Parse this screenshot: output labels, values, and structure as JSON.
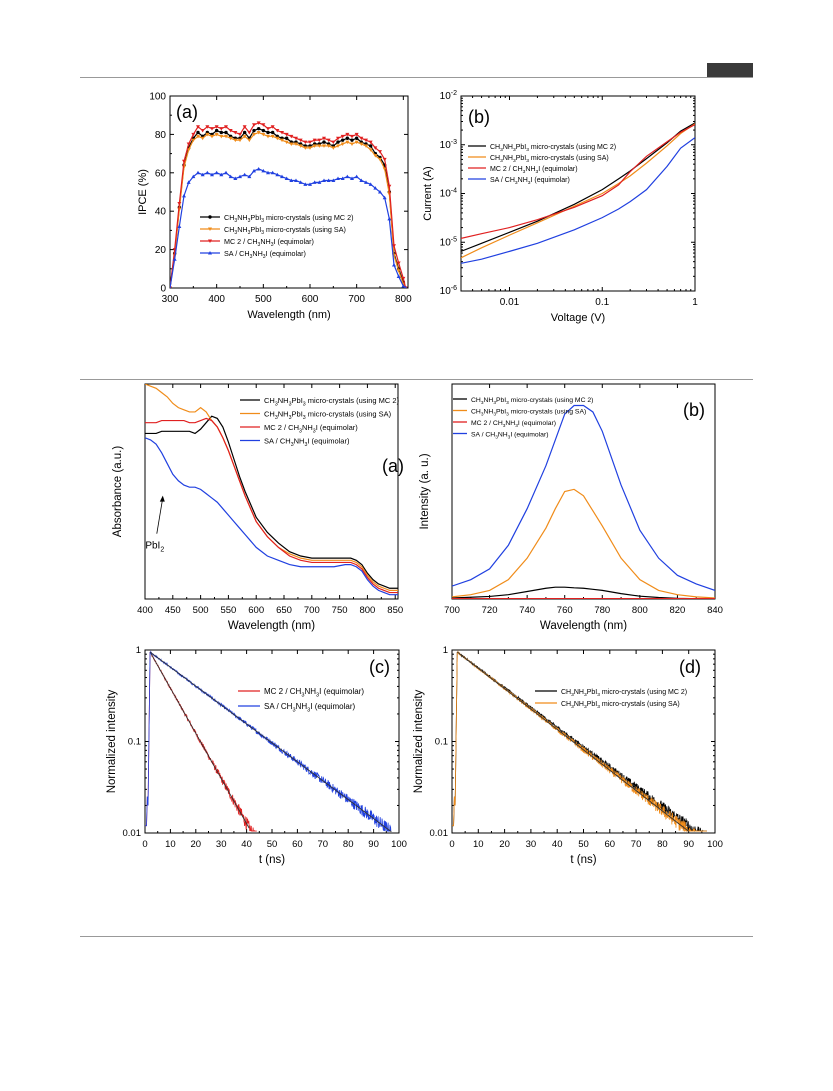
{
  "chart_data": [
    {
      "id": "fig1a",
      "type": "line",
      "panel_label": "(a)",
      "xlabel": "Wavelength (nm)",
      "ylabel": "IPCE (%)",
      "xlim": [
        300,
        810
      ],
      "ylim": [
        0,
        100
      ],
      "xticks": [
        300,
        400,
        500,
        600,
        700,
        800
      ],
      "yticks": [
        0,
        20,
        40,
        60,
        80,
        100
      ],
      "legend_position": "lower-center",
      "x": [
        300,
        310,
        320,
        330,
        340,
        350,
        360,
        370,
        380,
        390,
        400,
        410,
        420,
        430,
        440,
        450,
        460,
        470,
        480,
        490,
        500,
        510,
        520,
        530,
        540,
        550,
        560,
        570,
        580,
        590,
        600,
        610,
        620,
        630,
        640,
        650,
        660,
        670,
        680,
        690,
        700,
        710,
        720,
        730,
        740,
        750,
        760,
        770,
        780,
        790,
        800,
        805
      ],
      "series": [
        {
          "name": "CH3NH3PbI3 micro-crystals (using MC 2)",
          "color": "#000000",
          "marker": "circle",
          "values": [
            0,
            18,
            42,
            64,
            73,
            78,
            81,
            79,
            81,
            80,
            82,
            81,
            81,
            79,
            78,
            78,
            81,
            78,
            82,
            83,
            82,
            81,
            81,
            79,
            78,
            78,
            76,
            76,
            75,
            74,
            74,
            75,
            75,
            76,
            75,
            74,
            76,
            77,
            78,
            77,
            78,
            76,
            75,
            74,
            70,
            68,
            64,
            50,
            18,
            10,
            3,
            0
          ]
        },
        {
          "name": "CH3NH3PbI3 micro-crystals (using SA)",
          "color": "#f08c1a",
          "marker": "triangle-down",
          "values": [
            0,
            17,
            41,
            63,
            72,
            77,
            79,
            78,
            80,
            79,
            80,
            79,
            79,
            78,
            77,
            77,
            79,
            77,
            80,
            81,
            80,
            79,
            79,
            78,
            77,
            76,
            75,
            75,
            74,
            73,
            73,
            74,
            74,
            74,
            74,
            73,
            74,
            75,
            76,
            75,
            76,
            75,
            74,
            72,
            69,
            67,
            62,
            49,
            17,
            9,
            2,
            0
          ]
        },
        {
          "name": "MC 2 / CH3NH3I (equimolar)",
          "color": "#e02020",
          "marker": "triangle-down",
          "values": [
            0,
            20,
            44,
            66,
            75,
            80,
            84,
            82,
            84,
            83,
            84,
            83,
            84,
            82,
            81,
            80,
            84,
            81,
            85,
            86,
            85,
            83,
            84,
            82,
            81,
            80,
            79,
            78,
            77,
            76,
            76,
            77,
            77,
            78,
            77,
            76,
            78,
            79,
            80,
            79,
            80,
            78,
            77,
            76,
            73,
            71,
            67,
            53,
            22,
            13,
            5,
            0
          ]
        },
        {
          "name": "SA / CH3NH3I (equimolar)",
          "color": "#2040e0",
          "marker": "triangle-up",
          "values": [
            0,
            15,
            32,
            48,
            55,
            58,
            60,
            59,
            60,
            59,
            60,
            59,
            60,
            58,
            57,
            58,
            59,
            58,
            61,
            62,
            61,
            60,
            60,
            59,
            58,
            57,
            56,
            56,
            55,
            54,
            54,
            55,
            55,
            56,
            56,
            56,
            57,
            57,
            58,
            57,
            58,
            56,
            55,
            54,
            52,
            50,
            47,
            36,
            12,
            6,
            1,
            0
          ]
        }
      ]
    },
    {
      "id": "fig1b",
      "type": "line",
      "panel_label": "(b)",
      "xlabel": "Voltage (V)",
      "ylabel": "Current (A)",
      "xscale": "log",
      "yscale": "log",
      "xlim": [
        0.003,
        1
      ],
      "ylim": [
        1e-06,
        0.01
      ],
      "xtick_labels": [
        "0.01",
        "0.1",
        "1"
      ],
      "ytick_labels": [
        "10-6",
        "10-5",
        "10-4",
        "10-3",
        "10-2"
      ],
      "legend_position": "top-left",
      "x": [
        0.003,
        0.005,
        0.01,
        0.02,
        0.05,
        0.1,
        0.15,
        0.2,
        0.3,
        0.5,
        0.7,
        1.0
      ],
      "series": [
        {
          "name": "CH3NH3PbI3 micro-crystals (using MC 2)",
          "color": "#000000",
          "values": [
            6.5e-06,
            9.5e-06,
            1.6e-05,
            2.7e-05,
            6e-05,
            0.00012,
            0.0002,
            0.00029,
            0.00052,
            0.0011,
            0.0019,
            0.0028
          ]
        },
        {
          "name": "CH3NH3PbI3 micro-crystals (using SA)",
          "color": "#f08c1a",
          "values": [
            4.8e-06,
            7.7e-06,
            1.4e-05,
            2.5e-05,
            5.5e-05,
            0.0001,
            0.00016,
            0.00023,
            0.00042,
            0.00095,
            0.0017,
            0.0027
          ]
        },
        {
          "name": "MC 2 / CH3NH3I (equimolar)",
          "color": "#e02020",
          "values": [
            1.2e-05,
            1.5e-05,
            2e-05,
            2.9e-05,
            5.2e-05,
            9e-05,
            0.00015,
            0.00028,
            0.00058,
            0.00115,
            0.0018,
            0.0026
          ]
        },
        {
          "name": "SA / CH3NH3I (equimolar)",
          "color": "#2040e0",
          "values": [
            3.7e-06,
            4.5e-06,
            6.5e-06,
            9.5e-06,
            1.8e-05,
            3.2e-05,
            4.8e-05,
            6.8e-05,
            0.00012,
            0.00036,
            0.00085,
            0.0014
          ]
        }
      ]
    },
    {
      "id": "fig2a",
      "type": "line",
      "panel_label": "(a)",
      "xlabel": "Wavelength (nm)",
      "ylabel": "Absorbance (a.u.)",
      "annotation": "PbI2",
      "xlim": [
        400,
        855
      ],
      "ylim": [
        0,
        1
      ],
      "xticks": [
        400,
        450,
        500,
        550,
        600,
        650,
        700,
        750,
        800,
        850
      ],
      "legend_position": "top-right",
      "x": [
        400,
        410,
        420,
        430,
        440,
        450,
        460,
        470,
        480,
        490,
        500,
        510,
        520,
        530,
        540,
        550,
        560,
        570,
        580,
        590,
        600,
        620,
        640,
        660,
        680,
        700,
        720,
        740,
        760,
        770,
        780,
        790,
        800,
        810,
        820,
        830,
        840,
        850,
        855
      ],
      "series": [
        {
          "name": "CH3NH3PbI3 micro-crystals (using MC 2)",
          "color": "#000000",
          "values": [
            0.77,
            0.77,
            0.77,
            0.78,
            0.78,
            0.78,
            0.78,
            0.78,
            0.78,
            0.77,
            0.79,
            0.82,
            0.85,
            0.84,
            0.8,
            0.73,
            0.65,
            0.57,
            0.5,
            0.44,
            0.38,
            0.31,
            0.26,
            0.22,
            0.2,
            0.19,
            0.19,
            0.19,
            0.19,
            0.19,
            0.18,
            0.16,
            0.12,
            0.09,
            0.07,
            0.06,
            0.05,
            0.05,
            0.05
          ]
        },
        {
          "name": "CH3NH3PbI3 micro-crystals (using SA)",
          "color": "#f08c1a",
          "values": [
            1.0,
            0.99,
            0.98,
            0.96,
            0.94,
            0.91,
            0.89,
            0.88,
            0.87,
            0.87,
            0.89,
            0.87,
            0.83,
            0.8,
            0.75,
            0.69,
            0.62,
            0.55,
            0.48,
            0.42,
            0.36,
            0.29,
            0.24,
            0.21,
            0.19,
            0.18,
            0.18,
            0.18,
            0.18,
            0.18,
            0.17,
            0.15,
            0.11,
            0.08,
            0.06,
            0.05,
            0.04,
            0.04,
            0.04
          ]
        },
        {
          "name": "MC 2 / CH3NH3I (equimolar)",
          "color": "#e02020",
          "values": [
            0.82,
            0.82,
            0.82,
            0.83,
            0.83,
            0.83,
            0.83,
            0.83,
            0.82,
            0.82,
            0.83,
            0.84,
            0.83,
            0.8,
            0.75,
            0.69,
            0.62,
            0.55,
            0.48,
            0.42,
            0.36,
            0.29,
            0.24,
            0.2,
            0.18,
            0.17,
            0.17,
            0.17,
            0.17,
            0.17,
            0.16,
            0.14,
            0.1,
            0.07,
            0.05,
            0.04,
            0.03,
            0.03,
            0.03
          ]
        },
        {
          "name": "SA / CH3NH3I (equimolar)",
          "color": "#2040e0",
          "values": [
            0.75,
            0.74,
            0.72,
            0.68,
            0.63,
            0.58,
            0.55,
            0.53,
            0.52,
            0.52,
            0.51,
            0.49,
            0.47,
            0.45,
            0.42,
            0.39,
            0.36,
            0.33,
            0.3,
            0.27,
            0.24,
            0.2,
            0.18,
            0.16,
            0.15,
            0.15,
            0.15,
            0.15,
            0.16,
            0.16,
            0.15,
            0.13,
            0.09,
            0.06,
            0.04,
            0.03,
            0.02,
            0.02,
            0.02
          ]
        }
      ]
    },
    {
      "id": "fig2b",
      "type": "line",
      "panel_label": "(b)",
      "xlabel": "Wavelength (nm)",
      "ylabel": "Intensity (a. u.)",
      "xlim": [
        700,
        840
      ],
      "ylim": [
        0,
        1
      ],
      "xticks": [
        700,
        720,
        740,
        760,
        780,
        800,
        820,
        840
      ],
      "legend_position": "top-left",
      "x": [
        700,
        710,
        720,
        730,
        740,
        750,
        755,
        760,
        765,
        770,
        775,
        780,
        790,
        800,
        810,
        820,
        830,
        840
      ],
      "series": [
        {
          "name": "CH3NH3PbI3 micro-crystals (using MC 2)",
          "color": "#000000",
          "values": [
            0.005,
            0.008,
            0.012,
            0.02,
            0.035,
            0.05,
            0.055,
            0.055,
            0.052,
            0.05,
            0.045,
            0.04,
            0.025,
            0.013,
            0.007,
            0.003,
            0.001,
            0.0
          ]
        },
        {
          "name": "CH3NH3PbI3 micro-crystals (using SA)",
          "color": "#f08c1a",
          "values": [
            0.01,
            0.02,
            0.04,
            0.09,
            0.19,
            0.33,
            0.42,
            0.5,
            0.51,
            0.48,
            0.41,
            0.34,
            0.19,
            0.09,
            0.04,
            0.02,
            0.01,
            0.005
          ]
        },
        {
          "name": "MC 2 / CH3NH3I (equimolar)",
          "color": "#e02020",
          "values": [
            0.002,
            0.002,
            0.002,
            0.002,
            0.002,
            0.002,
            0.002,
            0.002,
            0.002,
            0.002,
            0.002,
            0.002,
            0.002,
            0.002,
            0.002,
            0.002,
            0.002,
            0.002
          ]
        },
        {
          "name": "SA / CH3NH3I (equimolar)",
          "color": "#2040e0",
          "values": [
            0.06,
            0.09,
            0.14,
            0.25,
            0.42,
            0.62,
            0.74,
            0.86,
            0.9,
            0.9,
            0.87,
            0.78,
            0.53,
            0.32,
            0.19,
            0.11,
            0.07,
            0.04
          ]
        }
      ]
    },
    {
      "id": "fig2c",
      "type": "line",
      "panel_label": "(c)",
      "xlabel": "t (ns)",
      "ylabel": "Normalized intensity",
      "yscale": "log",
      "xlim": [
        0,
        100
      ],
      "ylim": [
        0.01,
        1
      ],
      "xticks": [
        0,
        10,
        20,
        30,
        40,
        50,
        60,
        70,
        80,
        90,
        100
      ],
      "ytick_labels": [
        "0.01",
        "0.1",
        "1"
      ],
      "legend_position": "top-right",
      "series": [
        {
          "name": "MC 2 / CH3NH3I (equimolar)",
          "color": "#e02020",
          "decay_ns": 8.8,
          "t_peak": 2,
          "t_end": 44
        },
        {
          "name": "SA / CH3NH3I (equimolar)",
          "color": "#2040e0",
          "decay_ns": 21,
          "t_peak": 2,
          "t_end": 97
        }
      ]
    },
    {
      "id": "fig2d",
      "type": "line",
      "panel_label": "(d)",
      "xlabel": "t (ns)",
      "ylabel": "Normalized intensity",
      "yscale": "log",
      "xlim": [
        0,
        100
      ],
      "ylim": [
        0.01,
        1
      ],
      "xticks": [
        0,
        10,
        20,
        30,
        40,
        50,
        60,
        70,
        80,
        90,
        100
      ],
      "ytick_labels": [
        "0.01",
        "0.1",
        "1"
      ],
      "legend_position": "top-right",
      "series": [
        {
          "name": "CH3NH3PbI3 micro-crystals (using MC 2)",
          "color": "#000000",
          "decay_ns": 20,
          "t_peak": 2,
          "t_end": 97
        },
        {
          "name": "CH3NH3PbI3 micro-crystals (using SA)",
          "color": "#f08c1a",
          "decay_ns": 19.5,
          "t_peak": 2,
          "t_end": 97
        }
      ]
    }
  ]
}
